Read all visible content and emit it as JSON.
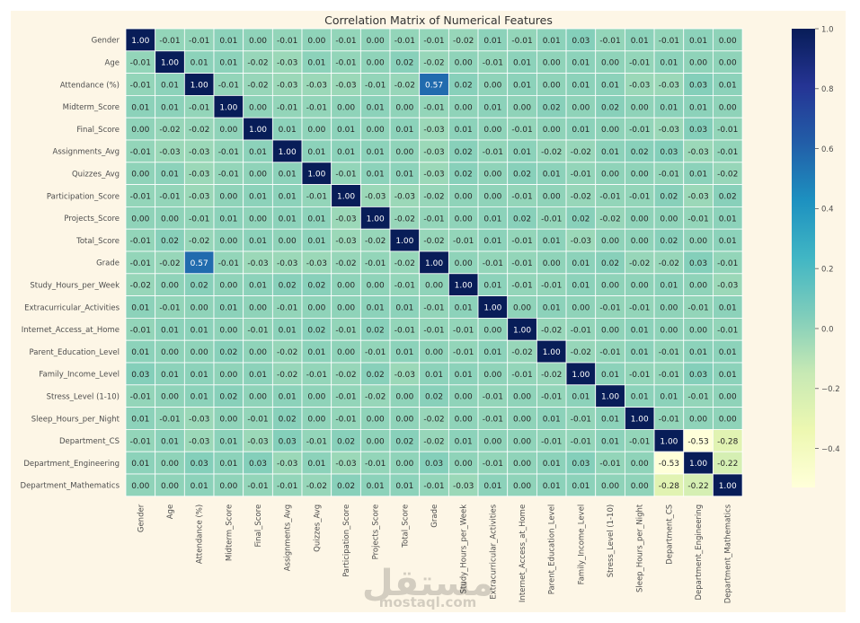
{
  "chart_data": {
    "type": "heatmap",
    "title": "Correlation Matrix of Numerical Features",
    "labels": [
      "Gender",
      "Age",
      "Attendance (%)",
      "Midterm_Score",
      "Final_Score",
      "Assignments_Avg",
      "Quizzes_Avg",
      "Participation_Score",
      "Projects_Score",
      "Total_Score",
      "Grade",
      "Study_Hours_per_Week",
      "Extracurricular_Activities",
      "Internet_Access_at_Home",
      "Parent_Education_Level",
      "Family_Income_Level",
      "Stress_Level (1-10)",
      "Sleep_Hours_per_Night",
      "Department_CS",
      "Department_Engineering",
      "Department_Mathematics"
    ],
    "matrix": [
      [
        1.0,
        -0.01,
        -0.01,
        0.01,
        0.0,
        -0.01,
        -0.0,
        -0.01,
        -0.0,
        -0.01,
        -0.01,
        -0.02,
        0.01,
        -0.01,
        0.01,
        0.03,
        -0.01,
        0.01,
        -0.01,
        0.01,
        -0.0
      ],
      [
        -0.01,
        1.0,
        0.01,
        0.01,
        -0.02,
        -0.03,
        0.01,
        -0.01,
        0.0,
        0.02,
        -0.02,
        0.0,
        -0.01,
        0.01,
        0.0,
        0.01,
        -0.0,
        -0.01,
        0.01,
        0.0,
        -0.0
      ],
      [
        -0.01,
        0.01,
        1.0,
        -0.01,
        -0.02,
        -0.03,
        -0.03,
        -0.03,
        -0.01,
        -0.02,
        0.57,
        0.02,
        -0.0,
        0.01,
        0.0,
        0.01,
        0.01,
        -0.03,
        -0.03,
        0.03,
        0.01
      ],
      [
        0.01,
        0.01,
        -0.01,
        1.0,
        0.0,
        -0.01,
        -0.01,
        -0.0,
        0.01,
        -0.0,
        -0.01,
        0.0,
        0.01,
        0.0,
        0.02,
        0.0,
        0.02,
        -0.0,
        0.01,
        0.01,
        0.0
      ],
      [
        0.0,
        -0.02,
        -0.02,
        0.0,
        1.0,
        0.01,
        0.0,
        0.01,
        -0.0,
        0.01,
        -0.03,
        0.01,
        -0.0,
        -0.01,
        0.0,
        0.01,
        -0.0,
        -0.01,
        -0.03,
        0.03,
        -0.01
      ],
      [
        -0.01,
        -0.03,
        -0.03,
        -0.01,
        0.01,
        1.0,
        0.01,
        0.01,
        0.01,
        0.0,
        -0.03,
        0.02,
        -0.01,
        0.01,
        -0.02,
        -0.02,
        0.01,
        0.02,
        0.03,
        -0.03,
        -0.01
      ],
      [
        -0.0,
        0.01,
        -0.03,
        -0.01,
        0.0,
        0.01,
        1.0,
        -0.01,
        0.01,
        0.01,
        -0.03,
        0.02,
        -0.0,
        0.02,
        0.01,
        -0.01,
        0.0,
        0.0,
        -0.01,
        0.01,
        -0.02
      ],
      [
        -0.01,
        -0.01,
        -0.03,
        -0.0,
        0.01,
        0.01,
        -0.01,
        1.0,
        -0.03,
        -0.03,
        -0.02,
        -0.0,
        -0.0,
        -0.01,
        -0.0,
        -0.02,
        -0.01,
        -0.01,
        0.02,
        -0.03,
        0.02
      ],
      [
        -0.0,
        0.0,
        -0.01,
        0.01,
        -0.0,
        0.01,
        0.01,
        -0.03,
        1.0,
        -0.02,
        -0.01,
        0.0,
        0.01,
        0.02,
        -0.01,
        0.02,
        -0.02,
        -0.0,
        -0.0,
        -0.01,
        0.01
      ],
      [
        -0.01,
        0.02,
        -0.02,
        -0.0,
        0.01,
        0.0,
        0.01,
        -0.03,
        -0.02,
        1.0,
        -0.02,
        -0.01,
        0.01,
        -0.01,
        0.01,
        -0.03,
        0.0,
        0.0,
        0.02,
        -0.0,
        0.01
      ],
      [
        -0.01,
        -0.02,
        0.57,
        -0.01,
        -0.03,
        -0.03,
        -0.03,
        -0.02,
        -0.01,
        -0.02,
        1.0,
        0.0,
        -0.01,
        -0.01,
        0.0,
        0.01,
        0.02,
        -0.02,
        -0.02,
        0.03,
        -0.01
      ],
      [
        -0.02,
        0.0,
        0.02,
        0.0,
        0.01,
        0.02,
        0.02,
        -0.0,
        0.0,
        -0.01,
        0.0,
        1.0,
        0.01,
        -0.01,
        -0.01,
        0.01,
        0.0,
        -0.0,
        0.01,
        0.0,
        -0.03
      ],
      [
        0.01,
        -0.01,
        -0.0,
        0.01,
        -0.0,
        -0.01,
        0.0,
        -0.0,
        0.01,
        0.01,
        -0.01,
        0.01,
        1.0,
        -0.0,
        0.01,
        -0.0,
        -0.01,
        -0.01,
        0.0,
        -0.01,
        0.01
      ],
      [
        -0.01,
        0.01,
        0.01,
        0.0,
        -0.01,
        0.01,
        0.02,
        -0.01,
        0.02,
        -0.01,
        -0.01,
        -0.01,
        -0.0,
        1.0,
        -0.02,
        -0.01,
        -0.0,
        0.01,
        0.0,
        0.0,
        -0.01
      ],
      [
        0.01,
        0.0,
        0.0,
        0.02,
        0.0,
        -0.02,
        0.01,
        -0.0,
        -0.01,
        0.01,
        0.0,
        -0.01,
        0.01,
        -0.02,
        1.0,
        -0.02,
        -0.01,
        0.01,
        -0.01,
        0.01,
        0.01
      ],
      [
        0.03,
        0.01,
        0.01,
        0.0,
        0.01,
        -0.02,
        -0.01,
        -0.02,
        0.02,
        -0.03,
        0.01,
        0.01,
        -0.0,
        -0.01,
        -0.02,
        1.0,
        0.01,
        -0.01,
        -0.01,
        0.03,
        0.01
      ],
      [
        -0.01,
        -0.0,
        0.01,
        0.02,
        -0.0,
        0.01,
        0.0,
        -0.01,
        -0.02,
        0.0,
        0.02,
        0.0,
        -0.01,
        -0.0,
        -0.01,
        0.01,
        1.0,
        0.01,
        0.01,
        -0.01,
        0.0
      ],
      [
        0.01,
        -0.01,
        -0.03,
        -0.0,
        -0.01,
        0.02,
        0.0,
        -0.01,
        -0.0,
        0.0,
        -0.02,
        -0.0,
        -0.01,
        0.0,
        0.01,
        -0.01,
        0.01,
        1.0,
        -0.01,
        0.0,
        -0.0
      ],
      [
        -0.01,
        0.01,
        -0.03,
        0.01,
        -0.03,
        0.03,
        -0.01,
        0.02,
        -0.0,
        0.02,
        -0.02,
        0.01,
        0.0,
        0.0,
        -0.01,
        -0.01,
        0.01,
        -0.01,
        1.0,
        -0.53,
        -0.28
      ],
      [
        0.01,
        0.0,
        0.03,
        0.01,
        0.03,
        -0.03,
        0.01,
        -0.03,
        -0.01,
        -0.0,
        0.03,
        0.0,
        -0.01,
        0.0,
        0.01,
        0.03,
        -0.01,
        0.0,
        -0.53,
        1.0,
        -0.22
      ],
      [
        -0.0,
        -0.0,
        0.01,
        0.0,
        -0.01,
        -0.01,
        -0.02,
        0.02,
        0.01,
        0.01,
        -0.01,
        -0.03,
        0.01,
        0.0,
        0.01,
        0.01,
        0.0,
        -0.0,
        -0.28,
        -0.22,
        1.0
      ]
    ],
    "color_range": [
      -0.53,
      1.0
    ],
    "colormap_stops": [
      "#ffffd9",
      "#edf8b1",
      "#c7e9b4",
      "#7fcdbb",
      "#41b6c4",
      "#1d91c0",
      "#225ea8",
      "#253494",
      "#081d58"
    ],
    "colorbar_ticks": [
      1.0,
      0.8,
      0.6,
      0.4,
      0.2,
      0.0,
      -0.2,
      -0.4
    ],
    "colorbar_tick_labels": [
      "1.0",
      "0.8",
      "0.6",
      "0.4",
      "0.2",
      "0.0",
      "−0.2",
      "−0.4"
    ],
    "annotation_format": "2 decimals"
  },
  "watermark": {
    "name": "مستقل",
    "domain": "mostaql.com"
  }
}
